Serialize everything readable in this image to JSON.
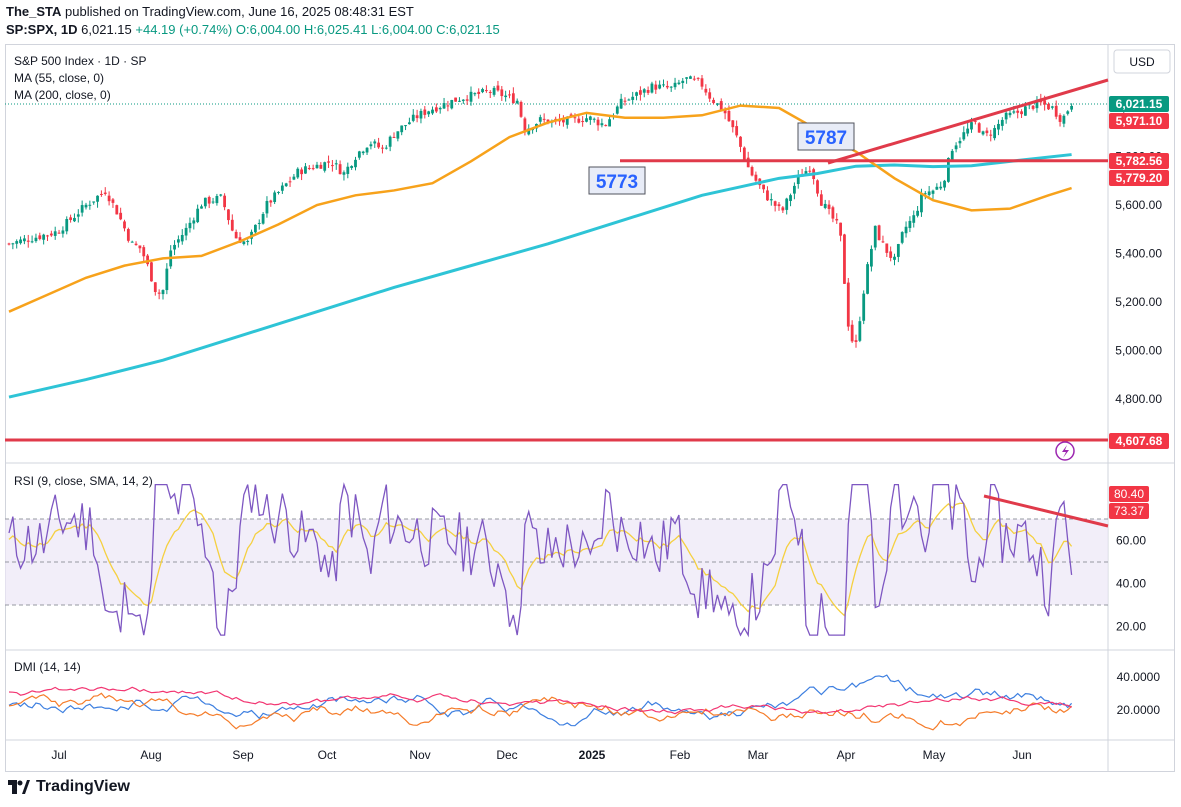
{
  "header": {
    "publisher": "The_STA",
    "published_text": "published on TradingView.com, June 16, 2025 08:48:31 EST",
    "symbol_line": "SP:SPX, 1D",
    "last": "6,021.15",
    "change": "+44.19 (+0.74%)",
    "open": "O:6,004.00",
    "high": "H:6,025.41",
    "low": "L:6,004.00",
    "close": "C:6,021.15"
  },
  "main_pane": {
    "title": "S&P 500 Index · 1D · SP",
    "ma55_label": "MA (55, close, 0)",
    "ma200_label": "MA (200, close, 0)",
    "currency": "USD",
    "price_ticks": [
      "6,000.00",
      "5,800.00",
      "5,600.00",
      "5,400.00",
      "5,200.00",
      "5,000.00",
      "4,800.00"
    ],
    "price_tick_values": [
      6000,
      5800,
      5600,
      5400,
      5200,
      5000,
      4800
    ],
    "badges": [
      {
        "text": "6,021.15",
        "value": 6021.15,
        "color": "#089981"
      },
      {
        "text": "5,971.10",
        "value": 5971.1,
        "color": "#f23645"
      },
      {
        "text": "5,782.56",
        "value": 5782.56,
        "color": "#f23645"
      },
      {
        "text": "5,779.20",
        "value": 5779.2,
        "color": "#f23645"
      },
      {
        "text": "4,607.68",
        "value": 4607.68,
        "color": "#f23645"
      }
    ],
    "annotations": [
      {
        "text": "5773"
      },
      {
        "text": "5787"
      }
    ]
  },
  "rsi_pane": {
    "title": "RSI (9, close, SMA, 14, 2)",
    "ticks": [
      "60.00",
      "40.00",
      "20.00"
    ],
    "tick_values": [
      60,
      40,
      20
    ],
    "badges": [
      {
        "text": "80.40",
        "color": "#f23645"
      },
      {
        "text": "73.37",
        "color": "#f23645"
      }
    ],
    "bands": [
      70,
      50,
      30
    ]
  },
  "dmi_pane": {
    "title": "DMI (14, 14)",
    "ticks": [
      "40.0000",
      "20.0000"
    ],
    "tick_values": [
      40,
      20
    ]
  },
  "time_axis": {
    "labels": [
      "Jul",
      "Aug",
      "Sep",
      "Oct",
      "Nov",
      "Dec",
      "2025",
      "Feb",
      "Mar",
      "Apr",
      "May",
      "Jun"
    ]
  },
  "colors": {
    "up": "#089981",
    "down": "#f23645",
    "ma55": "#f7a21b",
    "ma200": "#2ec4d6",
    "trend": "#e03a4a",
    "rsi": "#7e57c2",
    "rsi_sma": "#f5d040",
    "dmi_plus": "#3d7fe0",
    "dmi_minus": "#f57c2a",
    "adx": "#f23672"
  },
  "chart_data": [
    {
      "type": "candlestick",
      "title": "S&P 500 Index · 1D · SP",
      "ylim": [
        4750,
        6150
      ],
      "x_range": [
        "2024-06-21",
        "2025-06-16"
      ],
      "ma55": [
        [
          0,
          5160
        ],
        [
          10,
          5230
        ],
        [
          20,
          5300
        ],
        [
          30,
          5350
        ],
        [
          40,
          5380
        ],
        [
          50,
          5390
        ],
        [
          60,
          5450
        ],
        [
          70,
          5520
        ],
        [
          80,
          5600
        ],
        [
          90,
          5640
        ],
        [
          100,
          5660
        ],
        [
          110,
          5690
        ],
        [
          120,
          5780
        ],
        [
          130,
          5880
        ],
        [
          140,
          5940
        ],
        [
          150,
          5980
        ],
        [
          160,
          5960
        ],
        [
          170,
          5960
        ],
        [
          180,
          5970
        ],
        [
          190,
          6010
        ],
        [
          200,
          6000
        ],
        [
          210,
          5910
        ],
        [
          220,
          5820
        ],
        [
          230,
          5710
        ],
        [
          240,
          5620
        ],
        [
          250,
          5578
        ],
        [
          260,
          5585
        ],
        [
          270,
          5640
        ],
        [
          276,
          5670
        ]
      ],
      "ma200": [
        [
          0,
          4808
        ],
        [
          20,
          4880
        ],
        [
          40,
          4960
        ],
        [
          60,
          5060
        ],
        [
          80,
          5160
        ],
        [
          100,
          5260
        ],
        [
          120,
          5350
        ],
        [
          140,
          5440
        ],
        [
          160,
          5540
        ],
        [
          180,
          5640
        ],
        [
          200,
          5710
        ],
        [
          210,
          5730
        ],
        [
          220,
          5760
        ],
        [
          230,
          5765
        ],
        [
          240,
          5758
        ],
        [
          250,
          5762
        ],
        [
          260,
          5780
        ],
        [
          276,
          5808
        ]
      ],
      "horizontal_levels": [
        5782.56,
        4607.68
      ],
      "trendline_points": [
        [
          205,
          5787
        ],
        [
          280,
          6095
        ]
      ]
    },
    {
      "type": "line",
      "title": "RSI (9, close, SMA, 14, 2)",
      "ylim": [
        10,
        90
      ],
      "bands": [
        70,
        50,
        30
      ],
      "divergence_line": [
        [
          80.4,
          72.5
        ]
      ]
    },
    {
      "type": "line",
      "title": "DMI (14, 14)",
      "ylim": [
        5,
        55
      ],
      "series": [
        {
          "color": "#3d7fe0"
        },
        {
          "color": "#f57c2a"
        },
        {
          "color": "#f23672"
        }
      ]
    }
  ]
}
